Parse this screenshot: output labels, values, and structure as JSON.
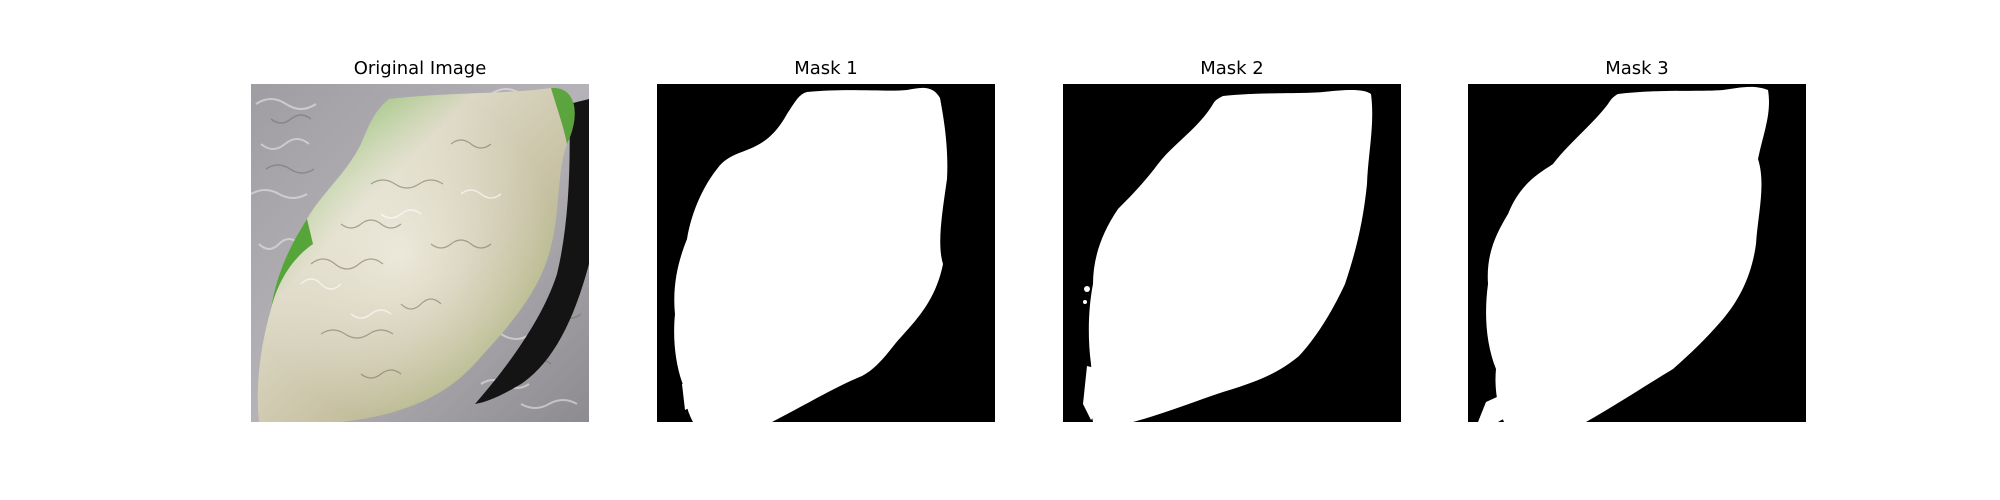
{
  "figure": {
    "panels": [
      {
        "title": "Original Image"
      },
      {
        "title": "Mask 1"
      },
      {
        "title": "Mask 2"
      },
      {
        "title": "Mask 3"
      }
    ]
  },
  "colors": {
    "background": "#ffffff",
    "mask_background": "#000000",
    "mask_foreground": "#ffffff",
    "texture_gray": "#a9a7ab",
    "leaf_green": "#4ea52c",
    "leaf_cream": "#d7d2bd"
  }
}
